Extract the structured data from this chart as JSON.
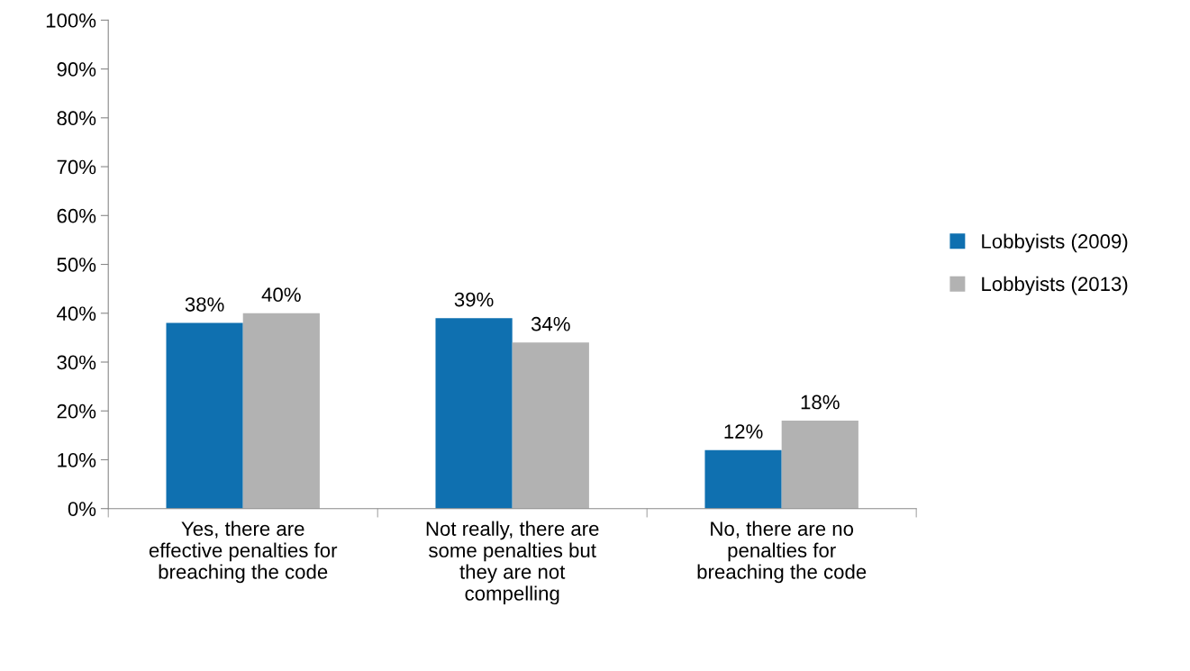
{
  "chart_data": {
    "type": "bar",
    "categories": [
      "Yes, there are\neffective penalties for\nbreaching the code",
      "Not really, there are\nsome penalties but\nthey are not\ncompelling",
      "No, there are no\npenalties for\nbreaching the code"
    ],
    "series": [
      {
        "name": "Lobbyists (2009)",
        "color": "#0f70b0",
        "values": [
          38,
          39,
          12
        ],
        "value_labels": [
          "38%",
          "39%",
          "12%"
        ]
      },
      {
        "name": "Lobbyists (2013)",
        "color": "#b2b2b2",
        "values": [
          40,
          34,
          18
        ],
        "value_labels": [
          "40%",
          "34%",
          "18%"
        ]
      }
    ],
    "ylim": [
      0,
      100
    ],
    "yticks": [
      {
        "value": 0,
        "label": "0%"
      },
      {
        "value": 10,
        "label": "10%"
      },
      {
        "value": 20,
        "label": "20%"
      },
      {
        "value": 30,
        "label": "30%"
      },
      {
        "value": 40,
        "label": "40%"
      },
      {
        "value": 50,
        "label": "50%"
      },
      {
        "value": 60,
        "label": "60%"
      },
      {
        "value": 70,
        "label": "70%"
      },
      {
        "value": 80,
        "label": "80%"
      },
      {
        "value": 90,
        "label": "90%"
      },
      {
        "value": 100,
        "label": "100%"
      }
    ],
    "grid": false,
    "legend": "right"
  }
}
